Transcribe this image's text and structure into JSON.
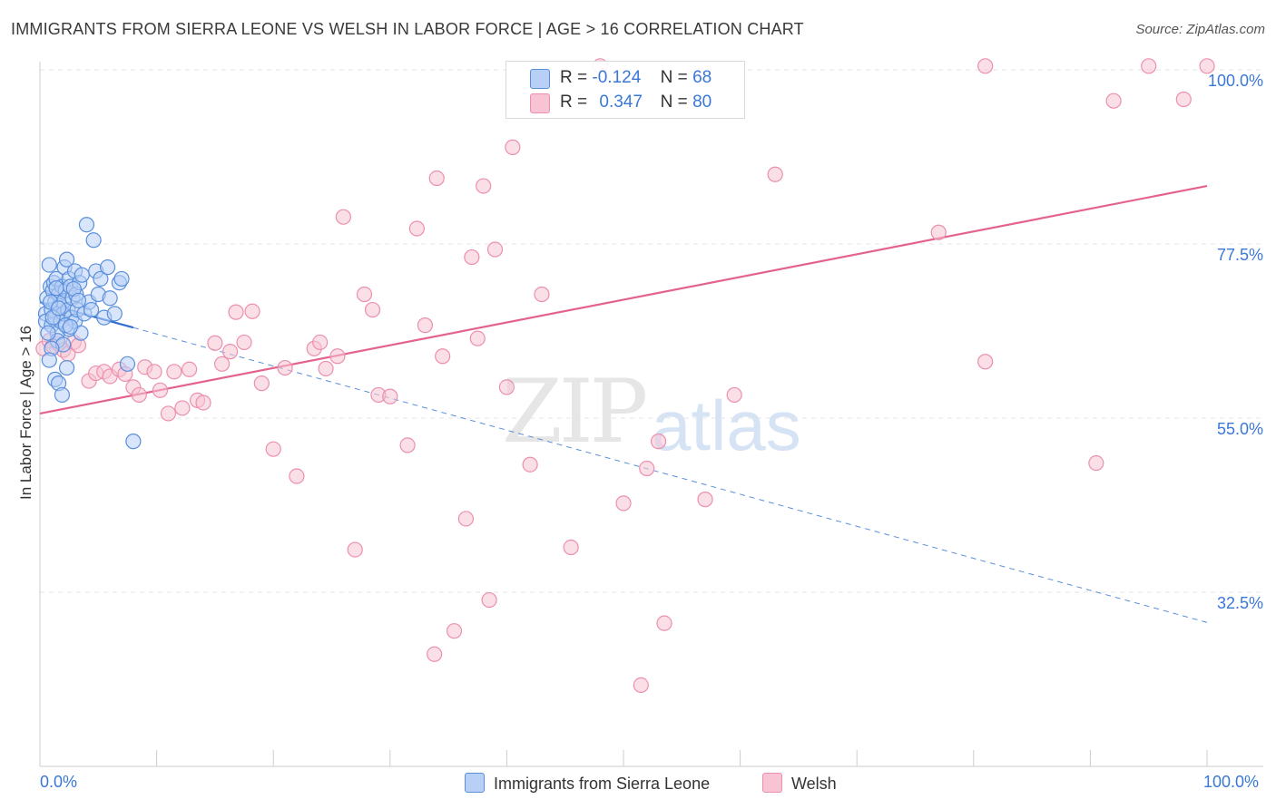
{
  "header": {
    "title": "IMMIGRANTS FROM SIERRA LEONE VS WELSH IN LABOR FORCE | AGE > 16 CORRELATION CHART",
    "source": "Source: ZipAtlas.com"
  },
  "legend": {
    "r_label": "R =",
    "n_label": "N =",
    "blue": {
      "r": "-0.124",
      "n": "68"
    },
    "pink": {
      "r": "0.347",
      "n": "80"
    }
  },
  "watermark": {
    "zip": "ZIP",
    "atlas": "atlas"
  },
  "colors": {
    "blue_fill": "#b8d0f5",
    "blue_stroke": "#5a8fdc",
    "blue_line": "#2f6fd0",
    "pink_fill": "#f8c4d4",
    "pink_stroke": "#eb8fae",
    "pink_line": "#e4638e",
    "tick_text": "#3a78d8"
  },
  "chart_data": {
    "type": "scatter",
    "title": "IMMIGRANTS FROM SIERRA LEONE VS WELSH IN LABOR FORCE | AGE > 16 CORRELATION CHART",
    "xlabel": "",
    "ylabel": "In Labor Force | Age > 16",
    "xlim": [
      0,
      100
    ],
    "ylim": [
      10,
      102
    ],
    "x_tick_labels": [
      "0.0%",
      "100.0%"
    ],
    "y_ticks": [
      32.5,
      55.0,
      77.5,
      100.0
    ],
    "y_tick_labels": [
      "32.5%",
      "55.0%",
      "77.5%",
      "100.0%"
    ],
    "grid": true,
    "legend_position": "top-center",
    "series": [
      {
        "name": "Immigrants from Sierra Leone",
        "color": "#5a8fdc",
        "trend": {
          "x": [
            0,
            8
          ],
          "y": [
            70.0,
            66.7
          ]
        },
        "trend_extended": {
          "x": [
            8,
            100
          ],
          "y": [
            66.7,
            28.6
          ]
        },
        "points": [
          [
            0.5,
            68.5
          ],
          [
            0.5,
            67.5
          ],
          [
            0.6,
            70.5
          ],
          [
            0.8,
            74.8
          ],
          [
            0.9,
            72.0
          ],
          [
            1.0,
            69.0
          ],
          [
            1.0,
            67.0
          ],
          [
            1.1,
            71.5
          ],
          [
            1.2,
            72.5
          ],
          [
            1.3,
            70.0
          ],
          [
            1.3,
            68.0
          ],
          [
            1.4,
            73.0
          ],
          [
            1.5,
            66.0
          ],
          [
            1.5,
            65.0
          ],
          [
            1.6,
            71.0
          ],
          [
            1.7,
            69.5
          ],
          [
            1.8,
            67.5
          ],
          [
            1.9,
            72.0
          ],
          [
            2.0,
            70.0
          ],
          [
            2.0,
            68.5
          ],
          [
            2.1,
            74.5
          ],
          [
            2.2,
            71.5
          ],
          [
            2.3,
            75.5
          ],
          [
            2.4,
            69.0
          ],
          [
            2.5,
            66.5
          ],
          [
            2.5,
            73.0
          ],
          [
            2.6,
            72.0
          ],
          [
            2.7,
            68.0
          ],
          [
            2.8,
            70.5
          ],
          [
            3.0,
            74.0
          ],
          [
            3.0,
            67.5
          ],
          [
            3.1,
            71.0
          ],
          [
            3.2,
            69.0
          ],
          [
            3.4,
            72.5
          ],
          [
            3.5,
            66.0
          ],
          [
            3.6,
            73.5
          ],
          [
            3.8,
            68.5
          ],
          [
            4.0,
            80.0
          ],
          [
            4.2,
            70.0
          ],
          [
            4.4,
            69.0
          ],
          [
            4.6,
            78.0
          ],
          [
            4.8,
            74.0
          ],
          [
            5.0,
            71.0
          ],
          [
            5.2,
            73.0
          ],
          [
            5.5,
            68.0
          ],
          [
            5.8,
            74.5
          ],
          [
            6.0,
            70.5
          ],
          [
            6.4,
            68.5
          ],
          [
            6.8,
            72.5
          ],
          [
            7.0,
            73.0
          ],
          [
            0.7,
            66.0
          ],
          [
            0.9,
            70.0
          ],
          [
            1.1,
            68.0
          ],
          [
            1.4,
            71.8
          ],
          [
            1.6,
            69.2
          ],
          [
            2.2,
            67.0
          ],
          [
            2.9,
            71.7
          ],
          [
            3.3,
            70.2
          ],
          [
            1.3,
            60.0
          ],
          [
            1.6,
            59.5
          ],
          [
            1.9,
            58.0
          ],
          [
            2.3,
            61.5
          ],
          [
            7.5,
            62.0
          ],
          [
            8.0,
            52.0
          ],
          [
            2.0,
            64.5
          ],
          [
            1.0,
            64.0
          ],
          [
            0.8,
            62.5
          ],
          [
            2.6,
            66.8
          ]
        ]
      },
      {
        "name": "Welsh",
        "color": "#eb8fae",
        "trend": {
          "x": [
            0,
            100
          ],
          "y": [
            55.6,
            85.0
          ]
        },
        "points": [
          [
            0.3,
            64.0
          ],
          [
            0.8,
            65.0
          ],
          [
            1.1,
            64.3
          ],
          [
            1.6,
            64.6
          ],
          [
            2.0,
            63.8
          ],
          [
            2.4,
            63.3
          ],
          [
            2.9,
            64.8
          ],
          [
            3.3,
            64.4
          ],
          [
            4.2,
            59.8
          ],
          [
            4.8,
            60.8
          ],
          [
            5.5,
            61.0
          ],
          [
            6.0,
            60.4
          ],
          [
            6.8,
            61.3
          ],
          [
            7.3,
            60.7
          ],
          [
            8.0,
            59.0
          ],
          [
            8.5,
            58.0
          ],
          [
            9.0,
            61.6
          ],
          [
            9.8,
            61.0
          ],
          [
            10.3,
            58.6
          ],
          [
            11.0,
            55.6
          ],
          [
            11.5,
            61.0
          ],
          [
            12.2,
            56.3
          ],
          [
            12.8,
            61.3
          ],
          [
            13.5,
            57.3
          ],
          [
            14.0,
            57.0
          ],
          [
            15.0,
            64.7
          ],
          [
            15.6,
            62.0
          ],
          [
            16.3,
            63.6
          ],
          [
            16.8,
            68.7
          ],
          [
            17.5,
            64.8
          ],
          [
            18.2,
            68.8
          ],
          [
            19.0,
            59.5
          ],
          [
            20.0,
            51.0
          ],
          [
            21.0,
            61.5
          ],
          [
            22.0,
            47.5
          ],
          [
            23.5,
            64.0
          ],
          [
            24.0,
            64.8
          ],
          [
            24.5,
            61.4
          ],
          [
            25.5,
            63.0
          ],
          [
            26.0,
            81.0
          ],
          [
            27.0,
            38.0
          ],
          [
            27.8,
            71.0
          ],
          [
            28.5,
            69.0
          ],
          [
            29.0,
            58.0
          ],
          [
            30.0,
            57.8
          ],
          [
            31.5,
            51.5
          ],
          [
            32.3,
            79.5
          ],
          [
            33.0,
            67.0
          ],
          [
            33.8,
            24.5
          ],
          [
            34.0,
            86.0
          ],
          [
            34.5,
            63.0
          ],
          [
            35.5,
            27.5
          ],
          [
            36.5,
            42.0
          ],
          [
            37.0,
            75.8
          ],
          [
            37.5,
            65.3
          ],
          [
            38.0,
            85.0
          ],
          [
            38.5,
            31.5
          ],
          [
            39.0,
            76.8
          ],
          [
            40.0,
            59.0
          ],
          [
            40.5,
            90.0
          ],
          [
            42.0,
            49.0
          ],
          [
            43.0,
            71.0
          ],
          [
            45.5,
            38.3
          ],
          [
            48.0,
            100.5
          ],
          [
            50.0,
            44.0
          ],
          [
            51.5,
            20.5
          ],
          [
            52.0,
            48.5
          ],
          [
            53.0,
            52.0
          ],
          [
            53.5,
            28.5
          ],
          [
            57.0,
            44.5
          ],
          [
            59.5,
            58.0
          ],
          [
            63.0,
            86.5
          ],
          [
            77.0,
            79.0
          ],
          [
            81.0,
            100.5
          ],
          [
            81.0,
            62.3
          ],
          [
            90.5,
            49.2
          ],
          [
            92.0,
            96.0
          ],
          [
            95.0,
            100.5
          ],
          [
            98.0,
            96.2
          ],
          [
            100.0,
            100.5
          ]
        ]
      }
    ]
  },
  "bottom_legend": {
    "series1": "Immigrants from Sierra Leone",
    "series2": "Welsh"
  }
}
